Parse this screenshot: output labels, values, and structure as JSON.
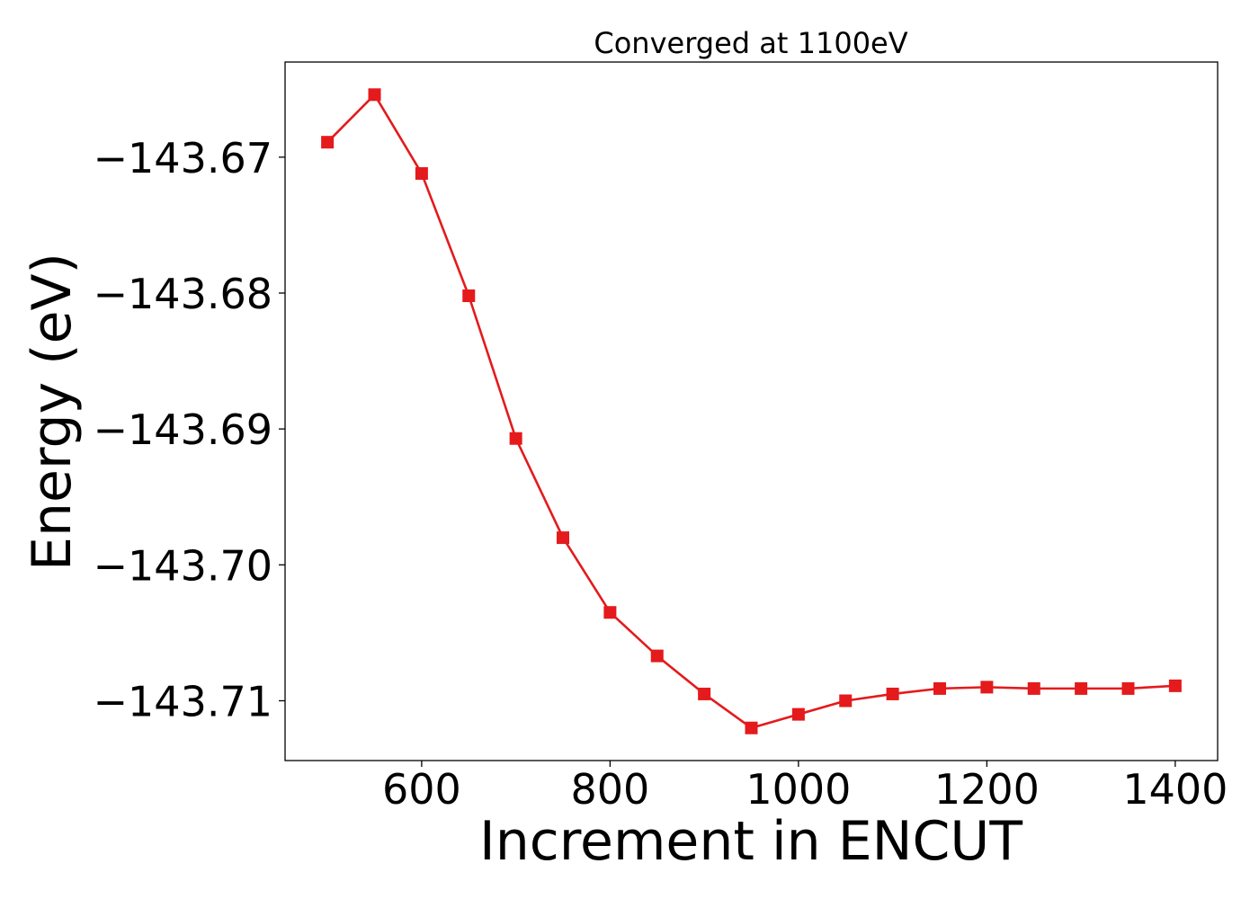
{
  "chart_data": {
    "type": "line",
    "title": "Converged at 1100eV",
    "xlabel": "Increment in ENCUT",
    "ylabel": "Energy (eV)",
    "xlim": [
      455,
      1445
    ],
    "ylim": [
      -143.7144,
      -143.663
    ],
    "x_ticks": [
      600,
      800,
      1000,
      1200,
      1400
    ],
    "x_tick_labels": [
      "600",
      "800",
      "1000",
      "1200",
      "1400"
    ],
    "y_ticks": [
      -143.67,
      -143.68,
      -143.69,
      -143.7,
      -143.71
    ],
    "y_tick_labels": [
      "−143.67",
      "−143.68",
      "−143.69",
      "−143.70",
      "−143.71"
    ],
    "grid": false,
    "marker": "square",
    "color": "#e41a1c",
    "series": [
      {
        "x": [
          500,
          550,
          600,
          650,
          700,
          750,
          800,
          850,
          900,
          950,
          1000,
          1050,
          1100,
          1150,
          1200,
          1250,
          1300,
          1350,
          1400
        ],
        "y": [
          -143.6689,
          -143.6654,
          -143.6712,
          -143.6802,
          -143.6907,
          -143.698,
          -143.7035,
          -143.7067,
          -143.7095,
          -143.712,
          -143.711,
          -143.71,
          -143.7095,
          -143.7091,
          -143.709,
          -143.7091,
          -143.7091,
          -143.7091,
          -143.7089
        ]
      }
    ]
  }
}
